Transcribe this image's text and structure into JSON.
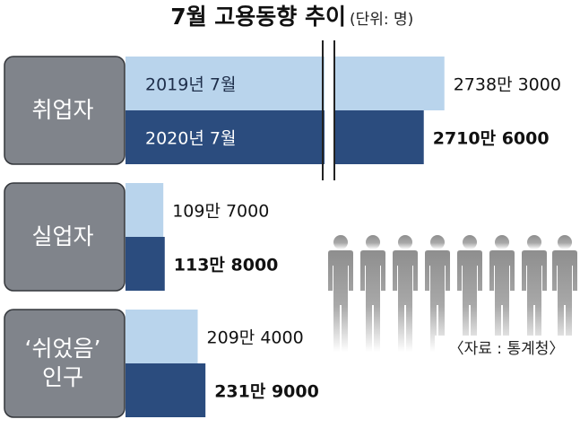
{
  "title": "7월 고용동향 추이",
  "unit": "(단위: 명)",
  "source": "〈자료 : 통계청〉",
  "chart_data": [
    {
      "type": "bar",
      "orientation": "horizontal",
      "axis_break": true,
      "categories": [
        "취업자"
      ],
      "xlim": [
        23100000,
        29120000
      ],
      "series": [
        {
          "name": "2019년 7월",
          "color": "#b9d4ec",
          "values": [
            27383000
          ],
          "value_labels": [
            "2738만 3000"
          ]
        },
        {
          "name": "2020년 7월",
          "color": "#2b4c7e",
          "values": [
            27106000
          ],
          "value_labels": [
            "2710만 6000"
          ]
        }
      ]
    },
    {
      "type": "bar",
      "orientation": "horizontal",
      "axis_break": false,
      "categories": [
        "실업자"
      ],
      "xlim": [
        0,
        13000000
      ],
      "series": [
        {
          "color": "#b9d4ec",
          "values": [
            1097000
          ],
          "value_labels": [
            "109만 7000"
          ]
        },
        {
          "color": "#2b4c7e",
          "values": [
            1138000
          ],
          "value_labels": [
            "113만 8000"
          ]
        }
      ]
    },
    {
      "type": "bar",
      "orientation": "horizontal",
      "axis_break": false,
      "categories": [
        "‘쉬었음’ 인구"
      ],
      "xlim": [
        0,
        13000000
      ],
      "series": [
        {
          "color": "#b9d4ec",
          "values": [
            2094000
          ],
          "value_labels": [
            "209만 4000"
          ]
        },
        {
          "color": "#2b4c7e",
          "values": [
            2319000
          ],
          "value_labels": [
            "231만 9000"
          ]
        }
      ]
    }
  ]
}
